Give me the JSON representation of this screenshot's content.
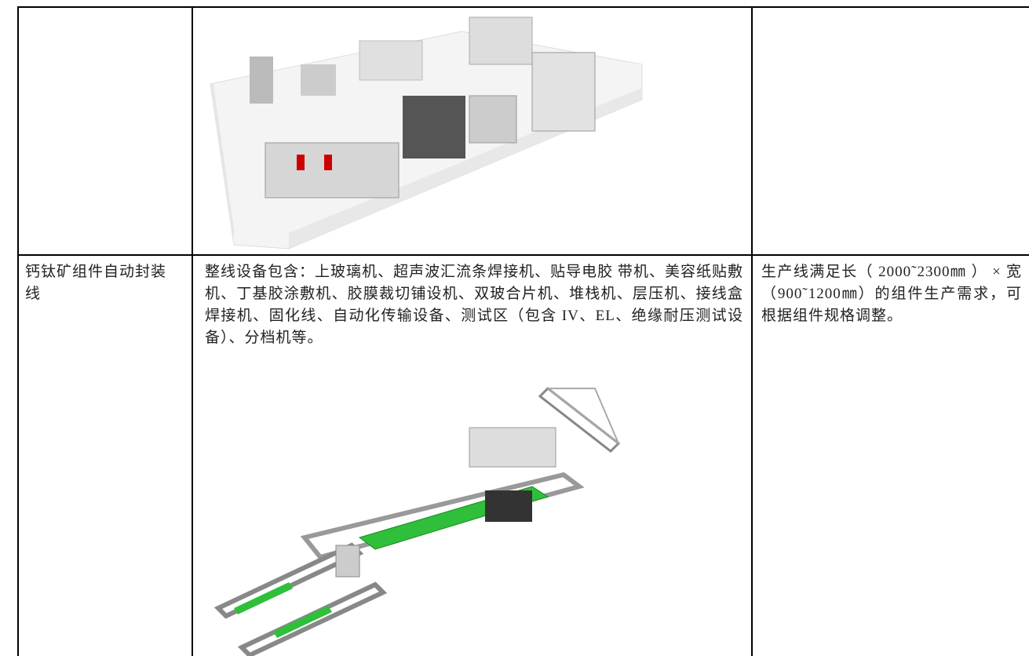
{
  "table": {
    "rows": [
      {
        "name": "钙钛矿组件自动封装线",
        "description": "整线设备包含：上玻璃机、超声波汇流条焊接机、贴导电胶 带机、美容纸贴敷机、丁基胶涂敷机、胶膜裁切铺设机、双玻合片机、堆栈机、层压机、接线盒焊接机、固化线、自动化传输设备、测试区（包含 IV、EL、绝缘耐压测试设备）、分档机等。",
        "specification": "生产线满足长（ 2000˜2300㎜ ） × 宽（900˜1200㎜）的组件生产需求，可根据组件规格调整。"
      }
    ]
  }
}
